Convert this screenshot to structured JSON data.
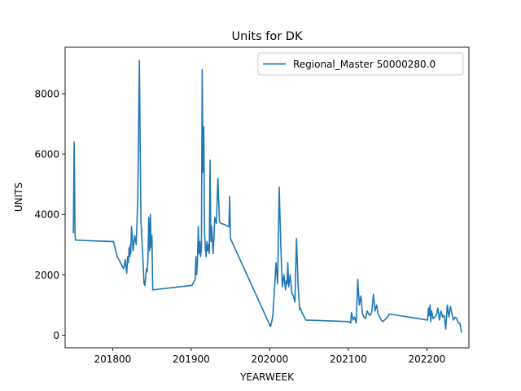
{
  "chart_data": {
    "type": "line",
    "title": "Units for DK",
    "xlabel": "YEARWEEK",
    "ylabel": "UNITS",
    "xlim": [
      201739.5,
      202253.5
    ],
    "ylim": [
      -420,
      9540
    ],
    "xticks": [
      201800,
      201900,
      202000,
      202100,
      202200
    ],
    "xtick_labels": [
      "201800",
      "201900",
      "202000",
      "202100",
      "202200"
    ],
    "yticks": [
      0,
      2000,
      4000,
      6000,
      8000
    ],
    "ytick_labels": [
      "0",
      "2000",
      "4000",
      "6000",
      "8000"
    ],
    "grid": false,
    "legend_position": "top-right",
    "series": [
      {
        "name": "Regional_Master 50000280.0",
        "color": "#1f77b4",
        "x": [
          201750,
          201751,
          201751.5,
          201752,
          201752.5,
          201801,
          201802,
          201803,
          201804,
          201805,
          201806,
          201808,
          201810,
          201812,
          201814,
          201816,
          201818,
          201819,
          201820,
          201821,
          201822,
          201822.5,
          201823,
          201824,
          201826,
          201828,
          201830,
          201832,
          201834,
          201836,
          201838,
          201840,
          201841,
          201842,
          201843,
          201844,
          201845,
          201846,
          201847,
          201848,
          201849,
          201850,
          201851,
          201901,
          201902,
          201903,
          201904,
          201905,
          201906,
          201907,
          201908,
          201909,
          201910,
          201911,
          201912,
          201913,
          201914,
          201915,
          201916,
          201917,
          201918,
          201919,
          201920,
          201921,
          201922,
          201923,
          201924,
          201925,
          201926,
          201928,
          201930,
          201932,
          201934,
          201936,
          201938,
          201940,
          201941,
          201942,
          201943,
          201944,
          201945,
          201946,
          201947,
          201948,
          201949,
          201950,
          202001,
          202002,
          202003,
          202004,
          202006,
          202008,
          202010,
          202012,
          202014,
          202016,
          202018,
          202020,
          202021,
          202022,
          202023,
          202024,
          202026,
          202028,
          202030,
          202032,
          202034,
          202036,
          202038,
          202039,
          202040,
          202041,
          202042,
          202043,
          202044,
          202045,
          202046,
          202101,
          202102,
          202103,
          202104,
          202106,
          202108,
          202110,
          202112,
          202114,
          202116,
          202118,
          202120,
          202122,
          202124,
          202126,
          202128,
          202130,
          202132,
          202134,
          202136,
          202138,
          202140,
          202142,
          202144,
          202146,
          202148,
          202150,
          202151,
          202152,
          202201,
          202202,
          202203,
          202204,
          202205,
          202206,
          202208,
          202210,
          202212,
          202214,
          202216,
          202218,
          202220,
          202222,
          202224,
          202226,
          202228,
          202230,
          202232,
          202234,
          202236,
          202238,
          202240,
          202242,
          202244
        ],
        "values": [
          3400,
          6400,
          5200,
          3500,
          3150,
          3100,
          3000,
          2900,
          2800,
          2700,
          2600,
          2500,
          2400,
          2300,
          2200,
          2500,
          2050,
          2600,
          2400,
          2900,
          2600,
          3000,
          2700,
          3600,
          2800,
          3300,
          3000,
          4500,
          9100,
          3800,
          2800,
          1700,
          1650,
          1900,
          2200,
          2100,
          2600,
          3900,
          2800,
          4000,
          2900,
          3300,
          1500,
          1650,
          1700,
          1750,
          1800,
          1850,
          2600,
          2000,
          2500,
          3600,
          2700,
          3100,
          2600,
          2900,
          8800,
          5400,
          6900,
          3400,
          2900,
          2600,
          3100,
          2800,
          3000,
          2700,
          5800,
          3100,
          3600,
          2700,
          3900,
          3700,
          5200,
          3750,
          3700,
          3690,
          3680,
          3670,
          3660,
          3650,
          3640,
          3620,
          3600,
          3590,
          4600,
          3200,
          280,
          400,
          500,
          700,
          1500,
          2400,
          1700,
          4900,
          3000,
          1600,
          2000,
          1500,
          1800,
          1700,
          2400,
          1600,
          2000,
          1400,
          1300,
          1100,
          3200,
          1700,
          850,
          900,
          800,
          750,
          700,
          650,
          600,
          550,
          500,
          450,
          420,
          400,
          750,
          500,
          600,
          400,
          1850,
          1000,
          1300,
          700,
          600,
          550,
          800,
          700,
          650,
          800,
          1350,
          800,
          1000,
          700,
          600,
          500,
          450,
          500,
          550,
          600,
          650,
          700,
          500,
          900,
          650,
          1000,
          450,
          800,
          550,
          600,
          650,
          900,
          500,
          800,
          600,
          650,
          200,
          1000,
          600,
          950,
          700,
          500,
          600,
          550,
          400,
          400,
          100
        ]
      }
    ]
  }
}
